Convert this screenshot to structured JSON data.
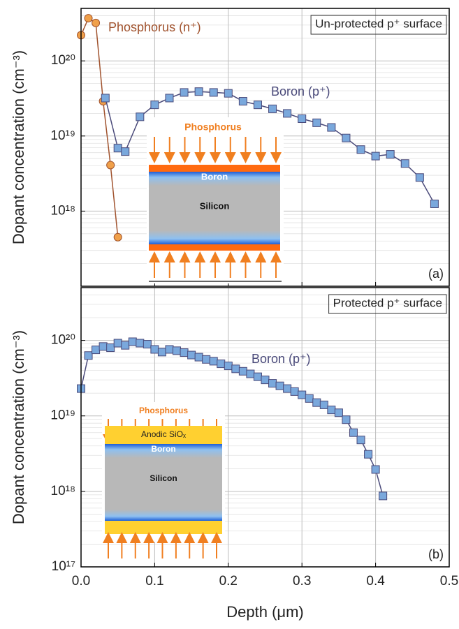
{
  "chart_data": [
    {
      "type": "line",
      "title": "Un-protected p⁺ surface",
      "panel_label": "(a)",
      "ylabel": "Dopant concentration (cm⁻³)",
      "yscale": "log",
      "xlim": [
        0,
        0.5
      ],
      "ylim": [
        1e+17,
        5e+20
      ],
      "xticks": [
        0,
        0.1,
        0.2,
        0.3,
        0.4,
        0.5
      ],
      "yticks": [
        {
          "value": 1e+18,
          "label": "10¹⁸"
        },
        {
          "value": 1e+19,
          "label": "10¹⁹"
        },
        {
          "value": 1e+20,
          "label": "10²⁰"
        }
      ],
      "grid": true,
      "inset_labels": [
        "Phosphorus",
        "Boron",
        "Silicon"
      ],
      "series": [
        {
          "name": "Phosphorus (n⁺)",
          "color": "#a0522d",
          "marker_color": "#f0a04a",
          "marker": "circle",
          "x": [
            0,
            0.01,
            0.02,
            0.03,
            0.04,
            0.05
          ],
          "values": [
            2.2e+20,
            3.7e+20,
            3.2e+20,
            2.9e+19,
            4.1e+18,
            4.5e+17
          ]
        },
        {
          "name": "Boron (p⁺)",
          "color": "#4a4a7a",
          "marker_color": "#7aa8dc",
          "marker": "square",
          "x": [
            0.033,
            0.05,
            0.06,
            0.08,
            0.1,
            0.12,
            0.14,
            0.16,
            0.18,
            0.2,
            0.22,
            0.24,
            0.26,
            0.28,
            0.3,
            0.32,
            0.34,
            0.36,
            0.38,
            0.4,
            0.42,
            0.44,
            0.46,
            0.48
          ],
          "values": [
            3.2e+19,
            6.9e+18,
            6.2e+18,
            1.8e+19,
            2.6e+19,
            3.2e+19,
            3.8e+19,
            3.9e+19,
            3.8e+19,
            3.7e+19,
            2.9e+19,
            2.6e+19,
            2.3e+19,
            2e+19,
            1.7e+19,
            1.5e+19,
            1.3e+19,
            9.4e+18,
            6.6e+18,
            5.4e+18,
            5.7e+18,
            4.3e+18,
            2.8e+18,
            1.25e+18
          ]
        }
      ]
    },
    {
      "type": "line",
      "title": "Protected p⁺ surface",
      "panel_label": "(b)",
      "ylabel": "Dopant concentration (cm⁻³)",
      "xlabel": "Depth (μm)",
      "yscale": "log",
      "xlim": [
        0,
        0.5
      ],
      "ylim": [
        1e+17,
        5e+20
      ],
      "xticks": [
        {
          "value": 0,
          "label": "0.0"
        },
        0.1,
        0.2,
        0.3,
        0.4,
        0.5
      ],
      "yticks": [
        {
          "value": 1e+17,
          "label": "10¹⁷"
        },
        {
          "value": 1e+18,
          "label": "10¹⁸"
        },
        {
          "value": 1e+19,
          "label": "10¹⁹"
        },
        {
          "value": 1e+20,
          "label": "10²⁰"
        }
      ],
      "grid": true,
      "inset_labels": [
        "Phosphorus",
        "Anodic SiOₓ",
        "Boron",
        "Silicon"
      ],
      "series": [
        {
          "name": "Boron (p⁺)",
          "color": "#4a4a7a",
          "marker_color": "#7aa8dc",
          "marker": "square",
          "x": [
            0,
            0.01,
            0.02,
            0.03,
            0.04,
            0.05,
            0.06,
            0.07,
            0.08,
            0.09,
            0.1,
            0.11,
            0.12,
            0.13,
            0.14,
            0.15,
            0.16,
            0.17,
            0.18,
            0.19,
            0.2,
            0.21,
            0.22,
            0.23,
            0.24,
            0.25,
            0.26,
            0.27,
            0.28,
            0.29,
            0.3,
            0.31,
            0.32,
            0.33,
            0.34,
            0.35,
            0.36,
            0.37,
            0.38,
            0.39,
            0.4,
            0.41
          ],
          "values": [
            2.3e+19,
            6.3e+19,
            7.5e+19,
            8.3e+19,
            8e+19,
            9.2e+19,
            8.6e+19,
            9.6e+19,
            9.2e+19,
            8.9e+19,
            7.6e+19,
            7e+19,
            7.6e+19,
            7.3e+19,
            6.9e+19,
            6.4e+19,
            6e+19,
            5.6e+19,
            5.3e+19,
            4.9e+19,
            4.6e+19,
            4.2e+19,
            3.9e+19,
            3.6e+19,
            3.3e+19,
            3e+19,
            2.7e+19,
            2.5e+19,
            2.3e+19,
            2.1e+19,
            1.9e+19,
            1.7e+19,
            1.5e+19,
            1.4e+19,
            1.2e+19,
            1.1e+19,
            8.9e+18,
            6e+18,
            4.8e+18,
            3.1e+18,
            1.95e+18,
            8.7e+17
          ]
        }
      ]
    }
  ]
}
